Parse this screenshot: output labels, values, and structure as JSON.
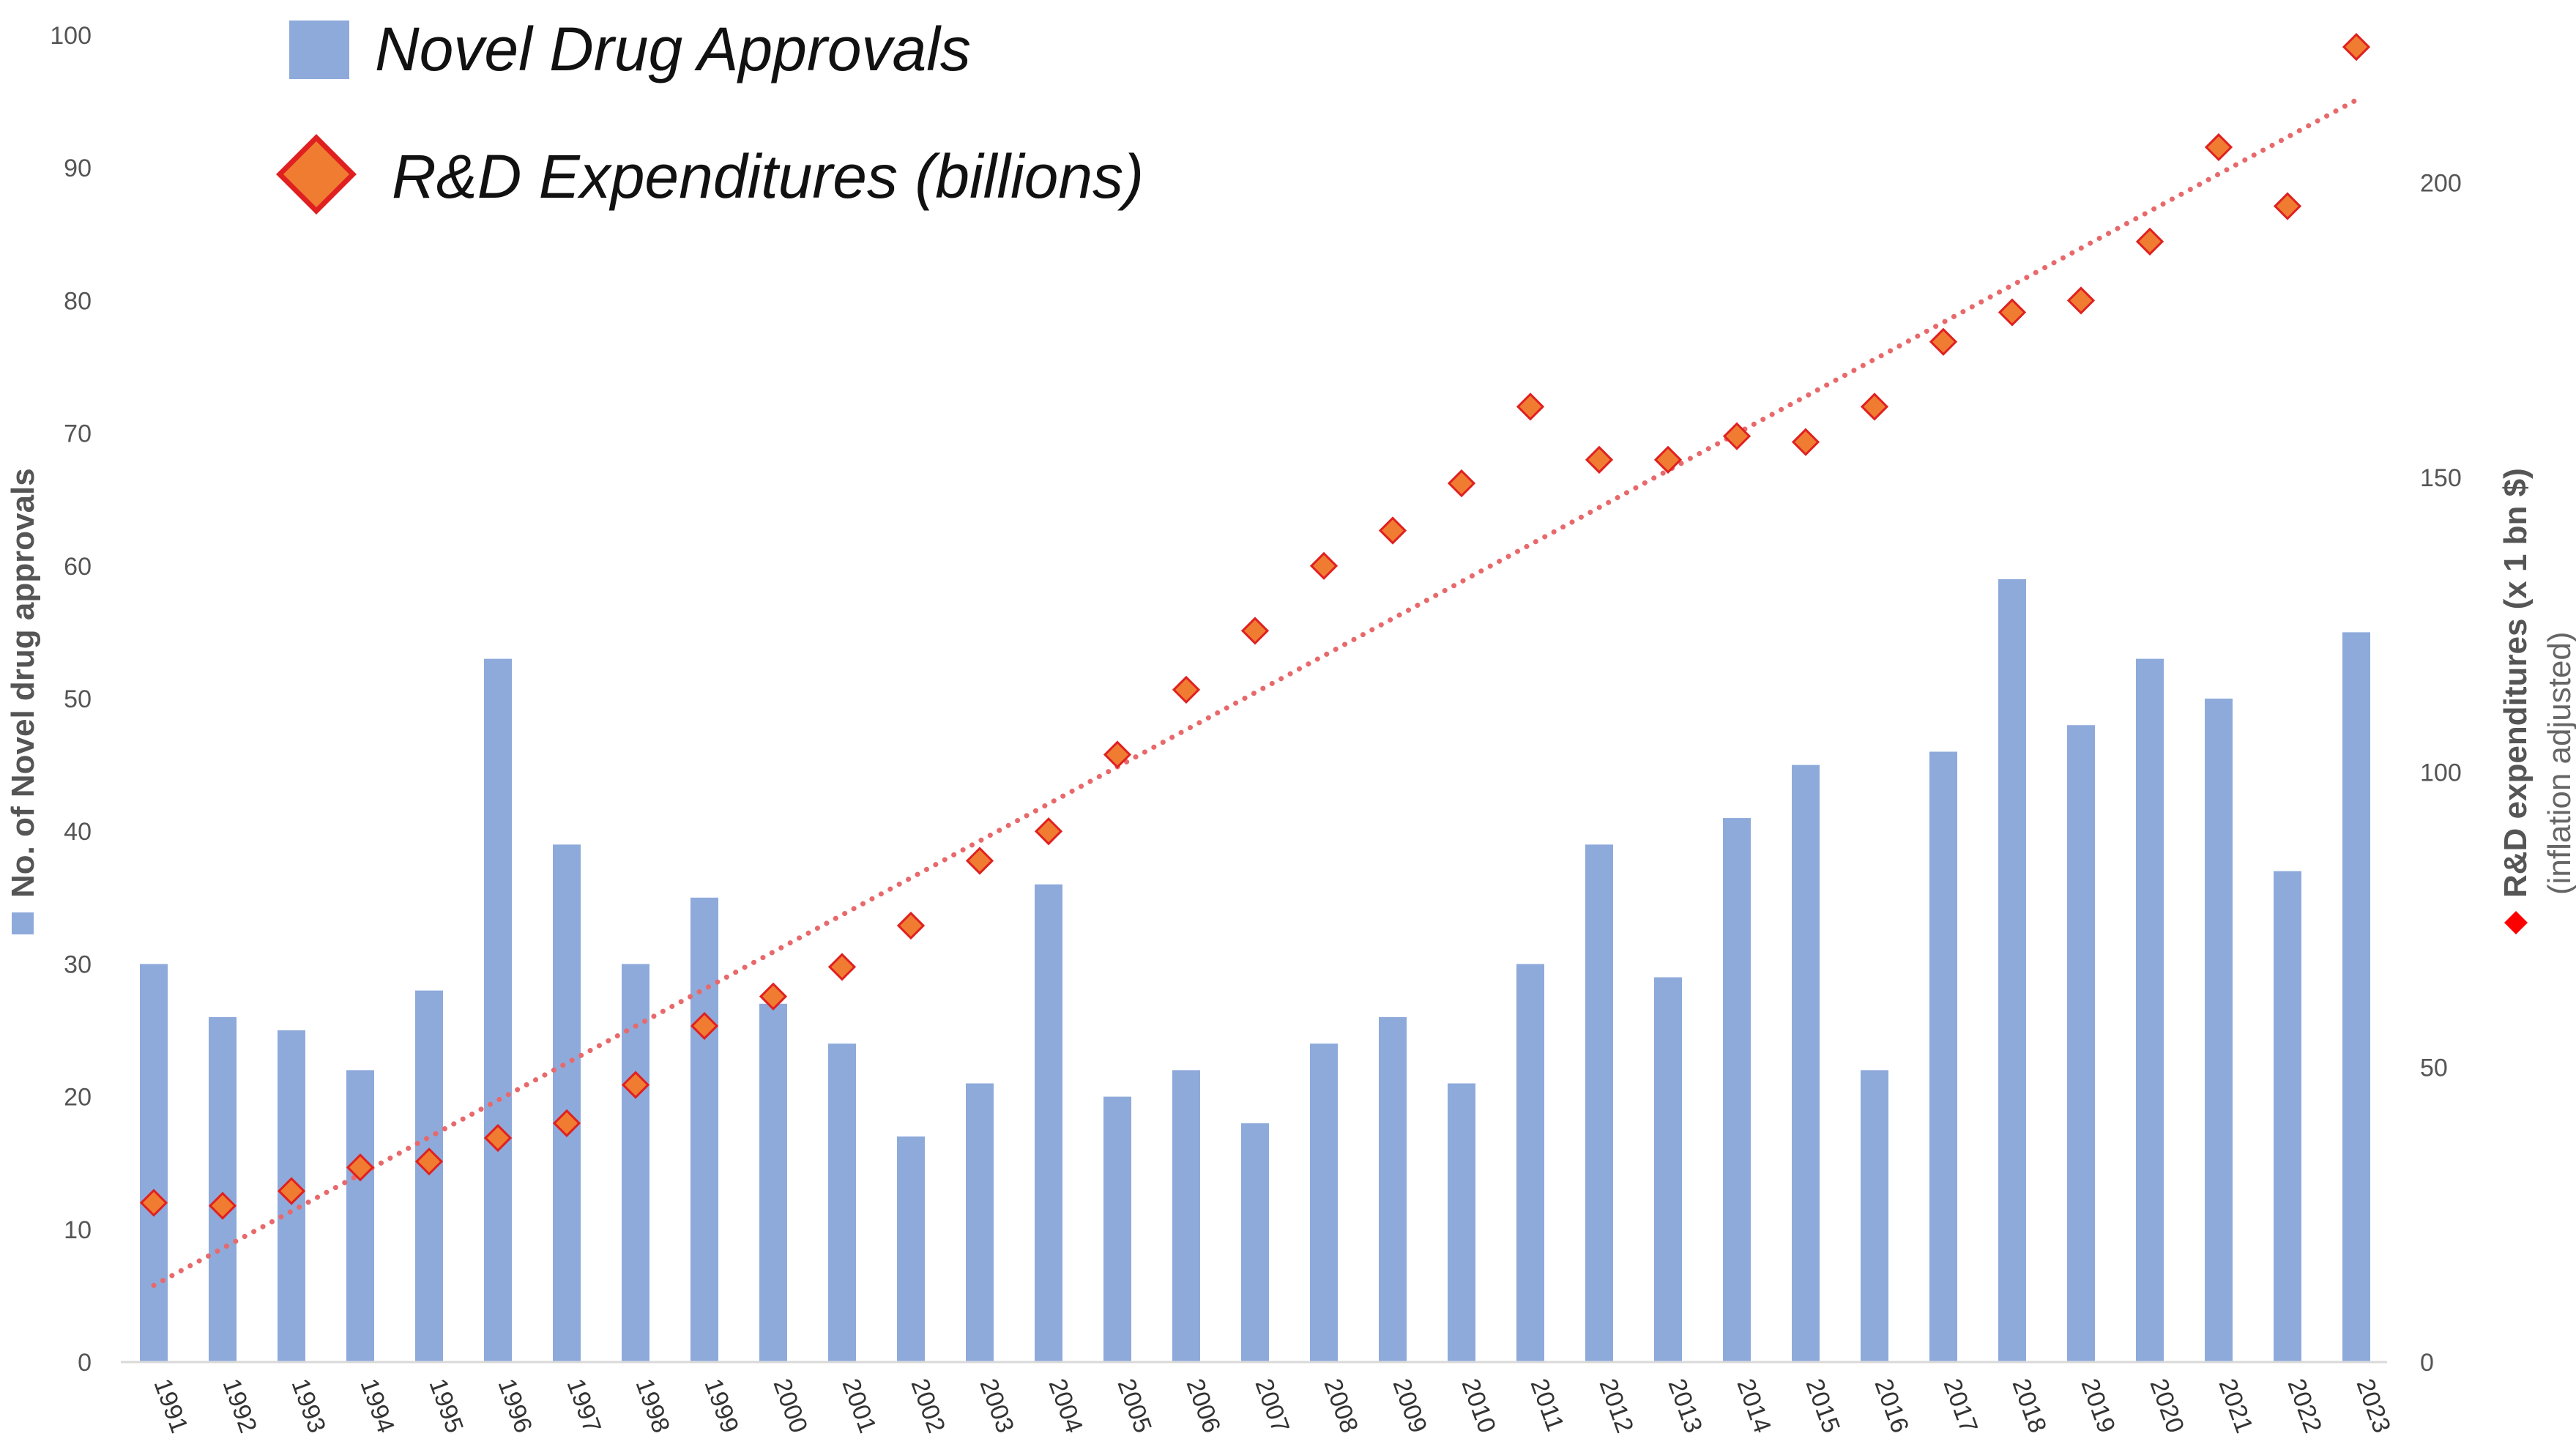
{
  "chart_data": {
    "type": "bar",
    "categories": [
      "1991",
      "1992",
      "1993",
      "1994",
      "1995",
      "1996",
      "1997",
      "1998",
      "1999",
      "2000",
      "2001",
      "2002",
      "2003",
      "2004",
      "2005",
      "2006",
      "2007",
      "2008",
      "2009",
      "2010",
      "2011",
      "2012",
      "2013",
      "2014",
      "2015",
      "2016",
      "2017",
      "2018",
      "2019",
      "2020",
      "2021",
      "2022",
      "2023"
    ],
    "series": [
      {
        "name": "Novel Drug Approvals",
        "type": "bar",
        "axis": "left",
        "color": "#8eaadb",
        "values": [
          30,
          26,
          25,
          22,
          28,
          53,
          39,
          30,
          35,
          27,
          24,
          17,
          21,
          36,
          20,
          22,
          18,
          24,
          26,
          21,
          30,
          39,
          29,
          41,
          45,
          22,
          46,
          59,
          48,
          53,
          50,
          37,
          55
        ]
      },
      {
        "name": "R&D Expenditures (billions)",
        "type": "scatter",
        "axis": "right",
        "color": "#f07c32",
        "edge_color": "#e02020",
        "values": [
          27,
          26.5,
          29,
          33,
          34,
          38,
          40.5,
          47,
          57,
          62,
          67,
          74,
          85,
          90,
          103,
          114,
          124,
          135,
          141,
          149,
          162,
          153,
          153,
          157,
          156,
          162,
          173,
          178,
          180,
          190,
          206,
          196,
          223
        ]
      }
    ],
    "trendline": {
      "series": "R&D Expenditures (billions)",
      "type": "linear",
      "start": 13,
      "end": 214,
      "color": "#e8696b"
    },
    "left_axis": {
      "label": "No. of Novel drug approvals",
      "ylim": [
        0,
        100
      ],
      "ticks": [
        0,
        10,
        20,
        30,
        40,
        50,
        60,
        70,
        80,
        90,
        100
      ]
    },
    "right_axis": {
      "label": "R&D expenditures (x 1 bn $)",
      "sublabel": "(inflation adjusted)",
      "ylim": [
        0,
        225
      ],
      "ticks": [
        0,
        50,
        100,
        150,
        200
      ]
    },
    "legend": {
      "placement": "top-left",
      "items": [
        "Novel Drug Approvals",
        "R&D Expenditures (billions)"
      ]
    },
    "grid": false,
    "title": "",
    "xlabel": ""
  }
}
